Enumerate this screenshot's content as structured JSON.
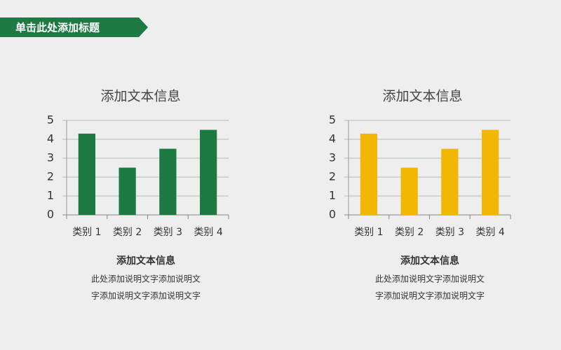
{
  "header": {
    "title": "单击此处添加标题"
  },
  "chart_data": [
    {
      "type": "bar",
      "title": "添加文本信息",
      "categories": [
        "类别 1",
        "类别 2",
        "类别 3",
        "类别 4"
      ],
      "values": [
        4.3,
        2.5,
        3.5,
        4.5
      ],
      "color": "#1d7a43",
      "ylim": [
        0,
        5
      ],
      "yticks": [
        0,
        1,
        2,
        3,
        4,
        5
      ],
      "grid": true
    },
    {
      "type": "bar",
      "title": "添加文本信息",
      "categories": [
        "类别 1",
        "类别 2",
        "类别 3",
        "类别 4"
      ],
      "values": [
        4.3,
        2.5,
        3.5,
        4.5
      ],
      "color": "#f2b705",
      "ylim": [
        0,
        5
      ],
      "yticks": [
        0,
        1,
        2,
        3,
        4,
        5
      ],
      "grid": true
    }
  ],
  "captions": [
    {
      "title": "添加文本信息",
      "lines": [
        "此处添加说明文字添加说明文",
        "字添加说明文字添加说明文字"
      ]
    },
    {
      "title": "添加文本信息",
      "lines": [
        "此处添加说明文字添加说明文",
        "字添加说明文字添加说明文字"
      ]
    }
  ]
}
